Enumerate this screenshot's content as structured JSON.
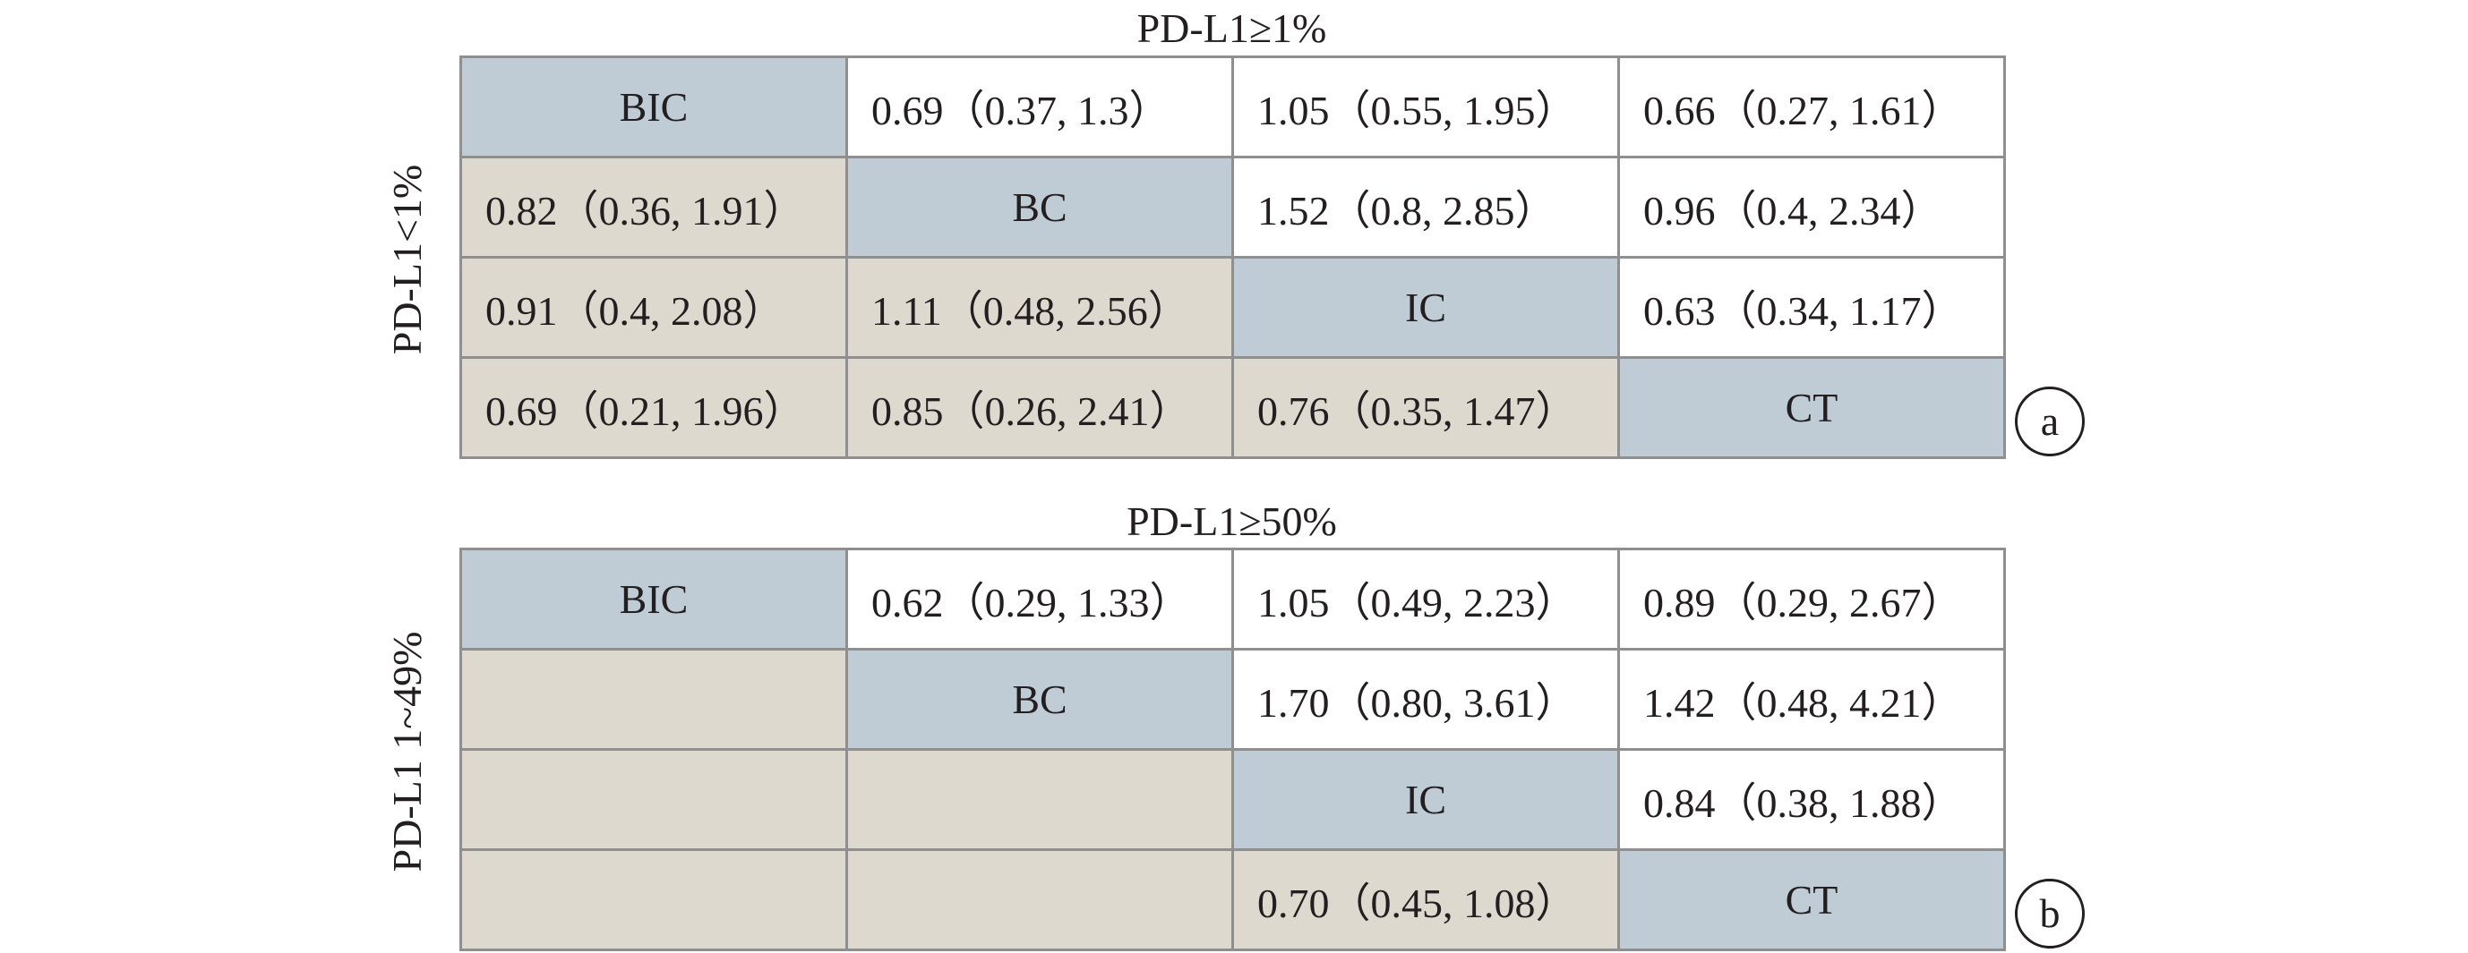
{
  "panels": [
    {
      "col_label": "PD-L1≥1%",
      "row_label": "PD-L1<1%",
      "panel_label": "a",
      "rows": [
        [
          "BIC",
          "0.69（0.37, 1.3）",
          "1.05（0.55, 1.95）",
          "0.66（0.27, 1.61）"
        ],
        [
          "0.82（0.36, 1.91）",
          "BC",
          "1.52（0.8, 2.85）",
          "0.96（0.4, 2.34）"
        ],
        [
          "0.91（0.4, 2.08）",
          "1.11（0.48, 2.56）",
          "IC",
          "0.63（0.34, 1.17）"
        ],
        [
          "0.69（0.21, 1.96）",
          "0.85（0.26, 2.41）",
          "0.76（0.35, 1.47）",
          "CT"
        ]
      ]
    },
    {
      "col_label": "PD-L1≥50%",
      "row_label": "PD-L1 1~49%",
      "panel_label": "b",
      "rows": [
        [
          "BIC",
          "0.62（0.29, 1.33）",
          "1.05（0.49, 2.23）",
          "0.89（0.29, 2.67）"
        ],
        [
          "",
          "BC",
          "1.70（0.80, 3.61）",
          "1.42（0.48, 4.21）"
        ],
        [
          "",
          "",
          "IC",
          "0.84（0.38, 1.88）"
        ],
        [
          "",
          "",
          "0.70（0.45, 1.08）",
          "CT"
        ]
      ]
    }
  ],
  "colors": {
    "diagonal": "#bfccd6",
    "lower": "#ddd9cf",
    "upper": "#ffffff",
    "border": "#8f8f8f"
  }
}
